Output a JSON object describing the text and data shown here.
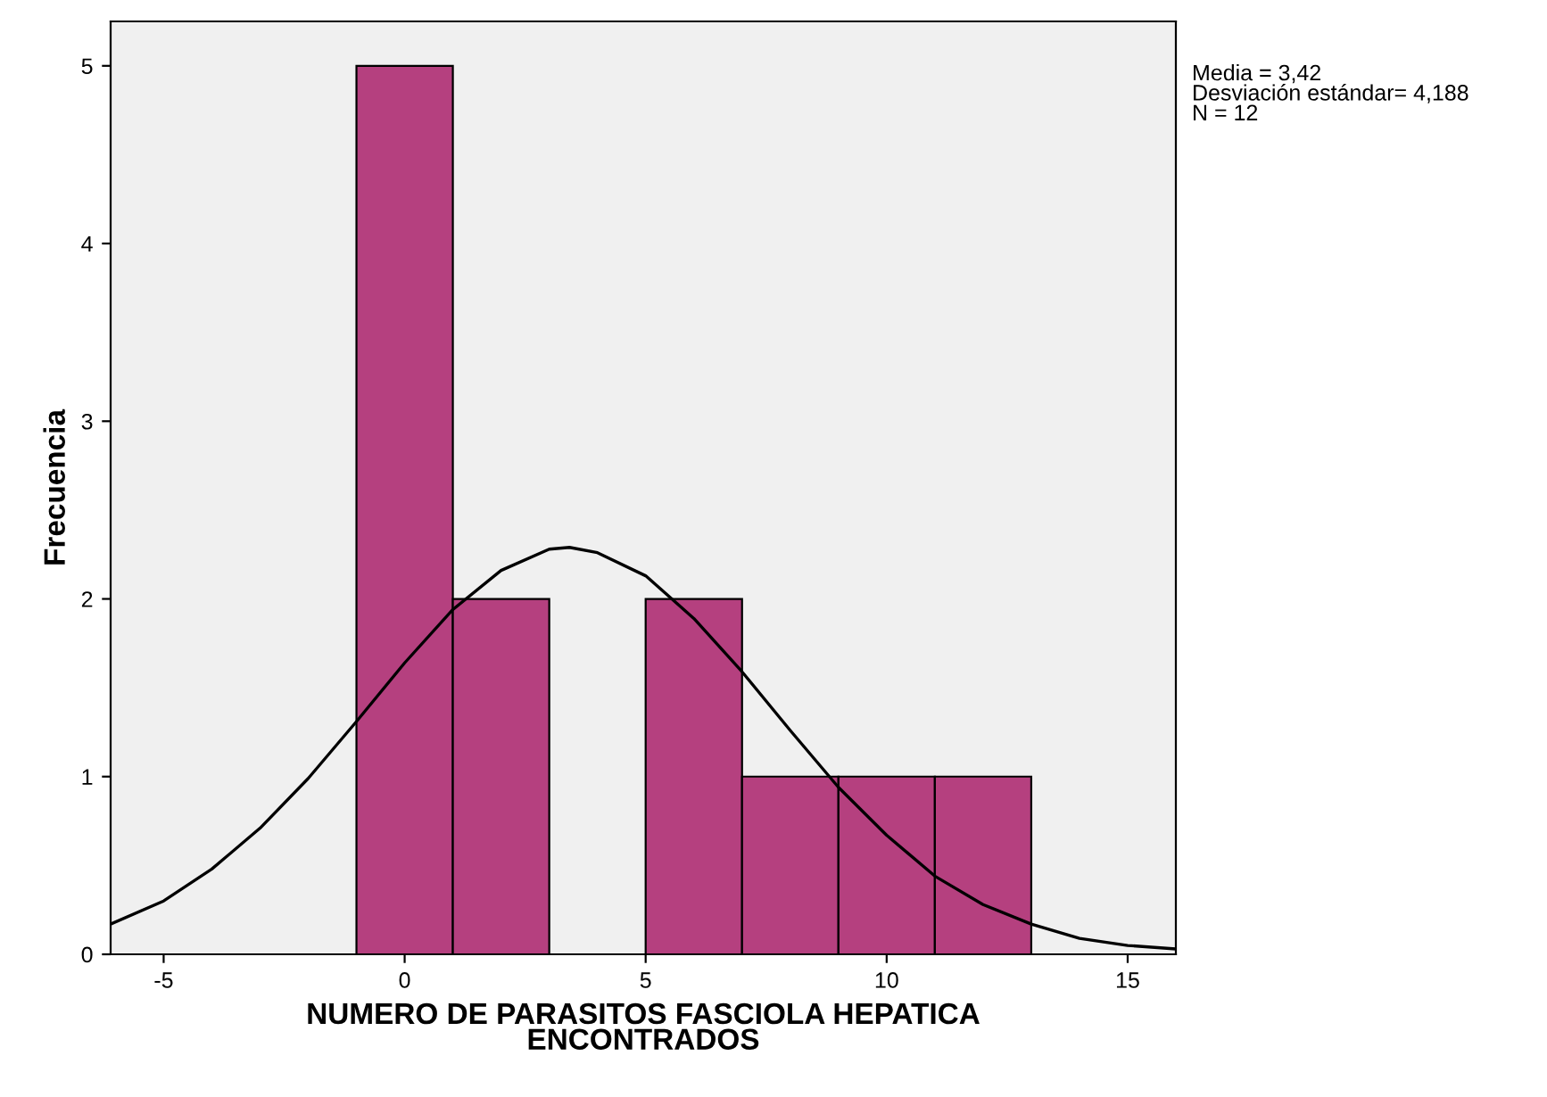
{
  "chart_data": {
    "type": "histogram",
    "xlabel": "NUMERO DE PARASITOS FASCIOLA HEPATICA\nENCONTRADOS",
    "ylabel": "Frecuencia",
    "bins": [
      -1,
      1,
      3,
      5,
      7,
      9,
      11,
      13
    ],
    "values": [
      5,
      2,
      0,
      2,
      1,
      1,
      1
    ],
    "color": "#b5407f",
    "series": [
      {
        "type": "line",
        "color": "#000000",
        "x": [
          -6.1,
          -5,
          -4,
          -3,
          -2,
          -1,
          0,
          1,
          2,
          3,
          3.42,
          4,
          5,
          6,
          7,
          8,
          9,
          10,
          11,
          12,
          13,
          14,
          15,
          16
        ],
        "values": [
          0.17,
          0.3,
          0.48,
          0.71,
          0.99,
          1.31,
          1.64,
          1.94,
          2.16,
          2.28,
          2.29,
          2.26,
          2.13,
          1.89,
          1.59,
          1.26,
          0.94,
          0.67,
          0.44,
          0.28,
          0.17,
          0.09,
          0.05,
          0.03
        ]
      }
    ],
    "xlim": [
      -6.1,
      16
    ],
    "xticks": [
      -5,
      0,
      5,
      10,
      15
    ],
    "ylim": [
      0,
      5.25
    ],
    "yticks": [
      0,
      1,
      2,
      3,
      4,
      5
    ],
    "grid": false,
    "annotations": [
      "Media = 3,42\nDesviación estándar= 4,188\nN = 12"
    ]
  }
}
